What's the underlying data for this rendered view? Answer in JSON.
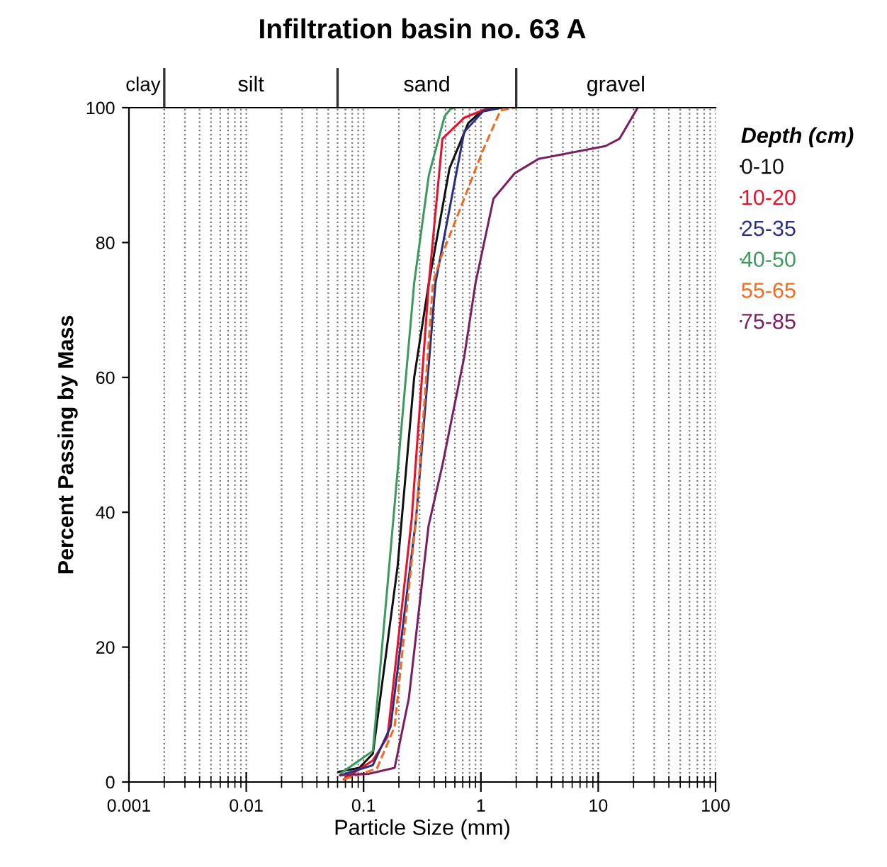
{
  "chart_data": {
    "type": "line",
    "title": "Infiltration basin no. 63 A",
    "xlabel": "Particle Size (mm)",
    "ylabel": "Percent Passing by Mass",
    "legend_title": "Depth (cm)",
    "log": "x",
    "xlim": [
      0.001,
      100
    ],
    "ylim": [
      0,
      100
    ],
    "xticks": [
      0.001,
      0.01,
      0.1,
      1,
      10,
      100
    ],
    "yticks": [
      0,
      20,
      40,
      60,
      80,
      100
    ],
    "grid": "x",
    "legend": "right",
    "marker": "none",
    "annotations": [
      "clay",
      "silt",
      "sand",
      "gravel"
    ],
    "ref_lines": [
      {
        "axis": "x",
        "value": 0.002
      },
      {
        "axis": "x",
        "value": 0.06
      },
      {
        "axis": "x",
        "value": 2
      }
    ],
    "series": [
      {
        "name": "0-10",
        "color": "#111111",
        "line_style": "solid",
        "x": [
          0.061,
          0.092,
          0.12,
          0.195,
          0.27,
          0.36,
          0.54,
          0.78,
          1.0,
          1.5
        ],
        "values": [
          1.5,
          2.1,
          4.2,
          32,
          60,
          74,
          91,
          97.7,
          99.4,
          100
        ]
      },
      {
        "name": "10-20",
        "color": "#e8102a",
        "line_style": "solid",
        "x": [
          0.068,
          0.12,
          0.16,
          0.257,
          0.36,
          0.47,
          0.72,
          1.0,
          1.2
        ],
        "values": [
          0.4,
          3.2,
          6.7,
          39,
          74,
          95.4,
          98.5,
          99.5,
          100
        ]
      },
      {
        "name": "25-35",
        "color": "#2b2f7f",
        "line_style": "solid",
        "x": [
          0.064,
          0.12,
          0.17,
          0.28,
          0.41,
          0.72,
          1.05,
          1.5
        ],
        "values": [
          1,
          2.5,
          8.2,
          39,
          74,
          96.4,
          99.5,
          100
        ]
      },
      {
        "name": "40-50",
        "color": "#3d9a5c",
        "line_style": "solid",
        "x": [
          0.064,
          0.12,
          0.27,
          0.36,
          0.49,
          0.55,
          0.6
        ],
        "values": [
          1.3,
          4.6,
          74,
          90,
          98.7,
          99.8,
          100
        ]
      },
      {
        "name": "55-65",
        "color": "#f26a21",
        "line_style": "dashed",
        "x": [
          0.068,
          0.13,
          0.184,
          0.28,
          0.39,
          0.45,
          0.72,
          1.03,
          1.47,
          2.0
        ],
        "values": [
          0.4,
          2,
          8.2,
          39,
          74,
          77.5,
          86.5,
          93.5,
          99.6,
          100
        ]
      },
      {
        "name": "75-85",
        "color": "#7a1f5f",
        "line_style": "solid",
        "x": [
          0.063,
          0.11,
          0.184,
          0.243,
          0.358,
          0.47,
          0.72,
          0.9,
          1.28,
          1.95,
          3.1,
          11.5,
          15.2,
          21.7
        ],
        "values": [
          1,
          1.2,
          2.1,
          12.4,
          38,
          47,
          63,
          74,
          86.5,
          90.3,
          92.4,
          94.3,
          95.4,
          100
        ]
      }
    ]
  }
}
